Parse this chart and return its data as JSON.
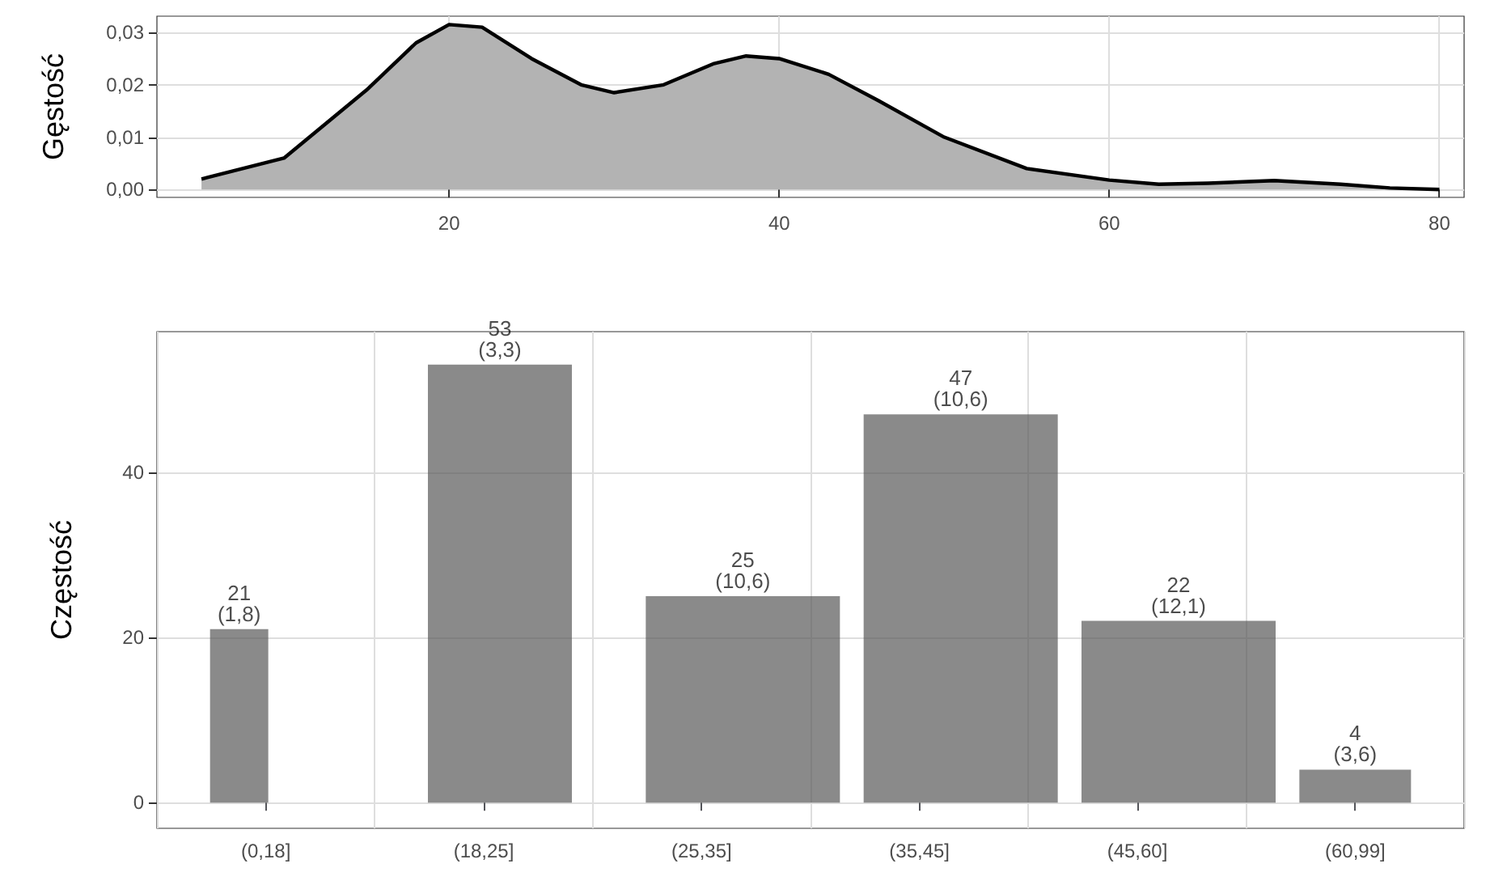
{
  "chart_data": [
    {
      "type": "area",
      "ylabel": "Gęstość",
      "x": [
        5,
        10,
        15,
        18,
        20,
        22,
        25,
        28,
        30,
        33,
        36,
        38,
        40,
        43,
        46,
        50,
        55,
        60,
        63,
        66,
        70,
        74,
        77,
        80
      ],
      "values": [
        0.002,
        0.006,
        0.019,
        0.028,
        0.0315,
        0.031,
        0.025,
        0.02,
        0.0185,
        0.02,
        0.024,
        0.0255,
        0.025,
        0.022,
        0.017,
        0.01,
        0.004,
        0.0018,
        0.001,
        0.0012,
        0.0017,
        0.001,
        0.0003,
        0
      ],
      "color": "#b3b3b3",
      "xlim": [
        2.3,
        81.5
      ],
      "xticks": [
        20,
        40,
        60,
        80
      ],
      "ylim": [
        -0.0015,
        0.0331
      ],
      "yticks": [
        {
          "value": 0,
          "label": "0,00"
        },
        {
          "value": 0.01,
          "label": "0,01"
        },
        {
          "value": 0.02,
          "label": "0,02"
        },
        {
          "value": 0.03,
          "label": "0,03"
        }
      ],
      "grid": true
    },
    {
      "type": "bar",
      "ylabel": "Częstość",
      "categories": [
        "(0,18]",
        "(18,25]",
        "(25,35]",
        "(35,45]",
        "(45,60]",
        "(60,99]"
      ],
      "values": [
        21,
        53,
        25,
        47,
        22,
        4
      ],
      "value_labels": [
        "21\n(1,8)",
        "53\n(3,3)",
        "25\n(10,6)",
        "47\n(10,6)",
        "22\n(12,1)",
        "4\n(3,6)"
      ],
      "color": "#595959",
      "ylim": [
        -3.1,
        57
      ],
      "yticks": [
        0,
        20,
        40
      ],
      "grid": true
    }
  ]
}
